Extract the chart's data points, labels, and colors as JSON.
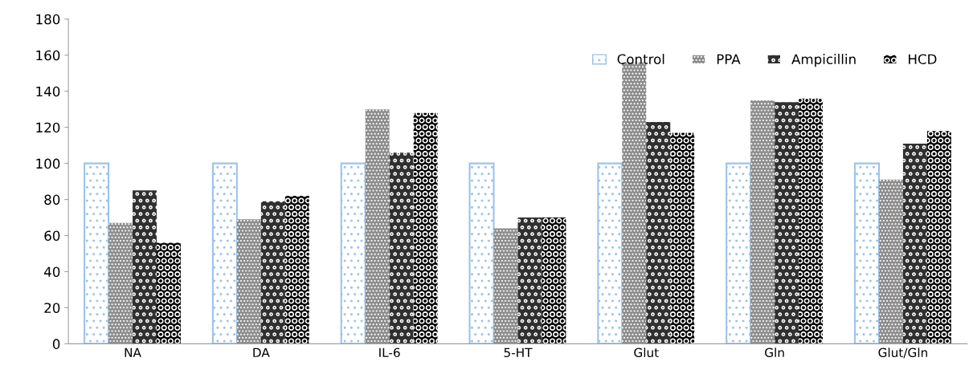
{
  "chart_data": {
    "type": "bar",
    "categories": [
      "NA",
      "DA",
      "IL-6",
      "5-HT",
      "Glut",
      "Gln",
      "Glut/Gln"
    ],
    "series": [
      {
        "name": "Control",
        "color": "#9dc3e6",
        "values": [
          100,
          100,
          100,
          100,
          100,
          100,
          100
        ]
      },
      {
        "name": "PPA",
        "color": "#8c8c8c",
        "values": [
          67,
          69,
          130,
          64,
          156,
          135,
          91
        ]
      },
      {
        "name": "Ampicillin",
        "color": "#303030",
        "values": [
          85,
          79,
          106,
          70,
          123,
          134,
          111
        ]
      },
      {
        "name": "HCD",
        "color": "#000000",
        "values": [
          56,
          82,
          128,
          70,
          117,
          136,
          118
        ]
      }
    ],
    "ylim": [
      0,
      180
    ],
    "yticks": [
      0,
      20,
      40,
      60,
      80,
      100,
      120,
      140,
      160,
      180
    ],
    "grid": false,
    "legend": "top right"
  }
}
